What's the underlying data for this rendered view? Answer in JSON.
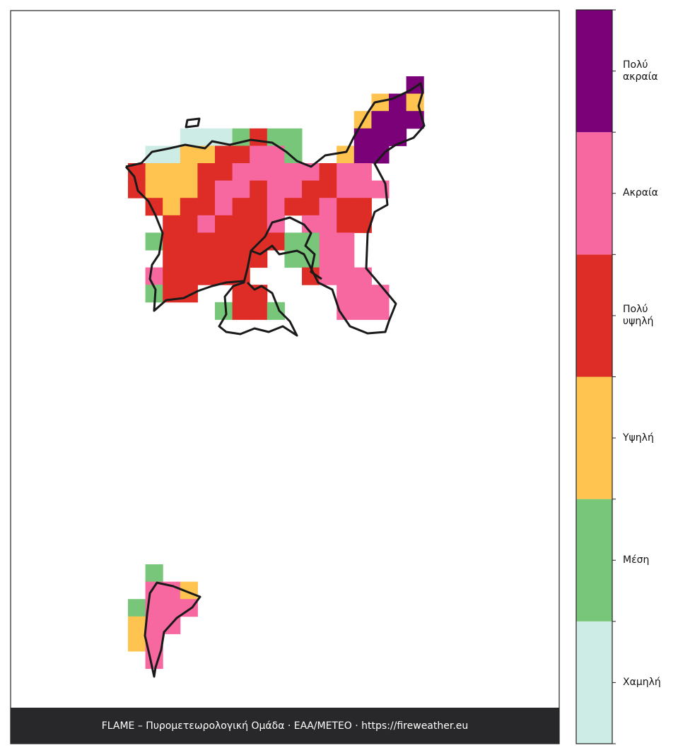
{
  "map": {
    "grid_upper": [
      [
        null,
        null,
        null,
        null,
        null,
        null,
        null,
        null,
        null,
        null,
        null,
        null,
        null,
        null,
        null,
        null,
        5,
        null
      ],
      [
        null,
        null,
        null,
        null,
        null,
        null,
        null,
        null,
        null,
        null,
        null,
        null,
        null,
        null,
        2,
        5,
        2,
        null
      ],
      [
        null,
        null,
        null,
        null,
        null,
        null,
        null,
        null,
        null,
        null,
        null,
        null,
        null,
        2,
        5,
        5,
        5,
        null
      ],
      [
        null,
        null,
        null,
        0,
        0,
        0,
        1,
        3,
        1,
        1,
        null,
        null,
        null,
        5,
        5,
        5,
        null,
        null
      ],
      [
        null,
        0,
        0,
        2,
        2,
        3,
        3,
        4,
        4,
        1,
        null,
        null,
        2,
        5,
        5,
        null,
        null,
        null
      ],
      [
        3,
        2,
        2,
        2,
        3,
        3,
        4,
        4,
        4,
        4,
        4,
        3,
        4,
        4,
        null,
        null,
        null,
        null
      ],
      [
        3,
        2,
        2,
        2,
        3,
        4,
        4,
        3,
        4,
        4,
        3,
        3,
        4,
        4,
        4,
        null,
        null,
        null
      ],
      [
        null,
        3,
        2,
        3,
        3,
        4,
        3,
        3,
        4,
        3,
        3,
        4,
        3,
        3,
        null,
        null,
        null,
        null
      ],
      [
        null,
        null,
        3,
        3,
        4,
        3,
        3,
        3,
        4,
        null,
        4,
        4,
        3,
        3,
        null,
        null,
        null,
        null
      ],
      [
        null,
        1,
        3,
        3,
        3,
        3,
        3,
        3,
        3,
        1,
        1,
        4,
        4,
        null,
        null,
        null,
        null,
        null
      ],
      [
        null,
        null,
        3,
        3,
        3,
        3,
        3,
        3,
        null,
        1,
        1,
        4,
        4,
        null,
        null,
        null,
        null,
        null
      ],
      [
        null,
        4,
        3,
        3,
        3,
        3,
        3,
        null,
        null,
        null,
        3,
        4,
        4,
        4,
        null,
        null,
        null,
        null
      ],
      [
        null,
        1,
        3,
        3,
        null,
        null,
        3,
        3,
        null,
        null,
        null,
        null,
        4,
        4,
        4,
        null,
        null,
        null
      ],
      [
        null,
        null,
        null,
        null,
        null,
        1,
        3,
        3,
        1,
        null,
        null,
        null,
        4,
        4,
        4,
        null,
        null,
        null
      ]
    ],
    "grid_lower": [
      [
        null,
        1,
        null,
        null
      ],
      [
        null,
        4,
        4,
        2
      ],
      [
        1,
        4,
        4,
        4
      ],
      [
        2,
        4,
        4,
        null
      ],
      [
        2,
        4,
        null,
        null
      ],
      [
        null,
        4,
        null,
        null
      ]
    ]
  },
  "legend": {
    "levels": [
      {
        "label": "Χαμηλή",
        "color": "#cdece5"
      },
      {
        "label": "Μέση",
        "color": "#78c679"
      },
      {
        "label": "Υψηλή",
        "color": "#fec44f"
      },
      {
        "label": "Πολύ\nυψηλή",
        "color": "#de2d26"
      },
      {
        "label": "Ακραία",
        "color": "#f768a1"
      },
      {
        "label": "Πολύ\nακραία",
        "color": "#7a0177"
      }
    ]
  },
  "footer": "FLAME – Πυρομετεωρολογική Ομάδα · ΕΑΑ/METEO · https://fireweather.eu"
}
